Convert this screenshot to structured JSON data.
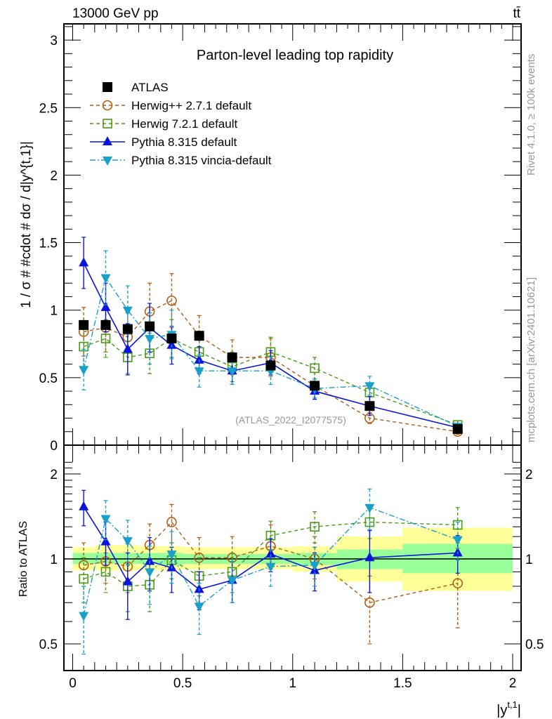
{
  "header": {
    "energy_label": "13000 GeV pp",
    "process_label": "tt̄"
  },
  "side_labels": {
    "rivet": "Rivet 4.1.0, ≥ 100k events",
    "mcplots": "mcplots.cern.ch [arXiv:2401.10621]"
  },
  "chart_data": [
    {
      "type": "line",
      "panel": "main",
      "title": "Parton-level leading top rapidity",
      "annotation": "(ATLAS_2022_I2077575)",
      "xlabel": "|y^{t,1}|",
      "ylabel": "1 / σ # #cdot # dσ / d|y^{t,1}|",
      "xlim": [
        -0.02,
        2.05
      ],
      "ylim": [
        0,
        3.12
      ],
      "x_ticks": [
        "0",
        "0.5",
        "1",
        "1.5",
        "2"
      ],
      "y_ticks": [
        "0",
        "0.5",
        "1",
        "1.5",
        "2",
        "2.5",
        "3"
      ],
      "bin_edges": [
        0,
        0.1,
        0.2,
        0.3,
        0.4,
        0.5,
        0.65,
        0.8,
        1.0,
        1.2,
        1.5,
        2.0
      ],
      "x": [
        0.05,
        0.15,
        0.25,
        0.35,
        0.45,
        0.575,
        0.725,
        0.9,
        1.1,
        1.35,
        1.75
      ],
      "legend_position": "top-left",
      "series": [
        {
          "name": "ATLAS",
          "color": "#000000",
          "marker": "square-filled",
          "line": "none",
          "values": [
            0.89,
            0.89,
            0.86,
            0.88,
            0.79,
            0.81,
            0.65,
            0.59,
            0.44,
            0.29,
            0.12
          ],
          "errors": [
            0.03,
            0.03,
            0.03,
            0.03,
            0.03,
            0.03,
            0.02,
            0.02,
            0.02,
            0.02,
            0.01
          ]
        },
        {
          "name": "Herwig++ 2.7.1 default",
          "color": "#b15c14",
          "marker": "circle-open",
          "line": "dashed",
          "values": [
            0.84,
            0.87,
            0.8,
            0.99,
            1.07,
            0.81,
            0.65,
            0.65,
            0.44,
            0.2,
            0.1
          ],
          "errors": [
            0.18,
            0.18,
            0.18,
            0.21,
            0.2,
            0.15,
            0.13,
            0.14,
            0.1,
            0.04,
            0.02
          ]
        },
        {
          "name": "Herwig 7.2.1 default",
          "color": "#4a9a18",
          "marker": "square-open",
          "line": "dashed",
          "values": [
            0.73,
            0.79,
            0.65,
            0.68,
            0.79,
            0.69,
            0.58,
            0.69,
            0.57,
            0.39,
            0.15
          ],
          "errors": [
            0.17,
            0.14,
            0.12,
            0.15,
            0.14,
            0.12,
            0.11,
            0.11,
            0.08,
            0.07,
            0.03
          ]
        },
        {
          "name": "Pythia 8.315 default",
          "color": "#0a14dc",
          "marker": "triangle-up",
          "line": "solid",
          "values": [
            1.35,
            1.02,
            0.71,
            0.87,
            0.74,
            0.63,
            0.55,
            0.61,
            0.4,
            0.29,
            0.13
          ],
          "errors": [
            0.19,
            0.18,
            0.19,
            0.18,
            0.14,
            0.1,
            0.1,
            0.09,
            0.06,
            0.07,
            0.02
          ]
        },
        {
          "name": "Pythia 8.315 vincia-default",
          "color": "#19a0c8",
          "marker": "triangle-down",
          "line": "dashdot",
          "values": [
            0.56,
            1.24,
            1.0,
            0.79,
            0.82,
            0.55,
            0.55,
            0.55,
            0.42,
            0.44,
            0.14
          ],
          "errors": [
            0.15,
            0.2,
            0.18,
            0.19,
            0.18,
            0.12,
            0.1,
            0.1,
            0.07,
            0.07,
            0.02
          ]
        }
      ]
    },
    {
      "type": "line",
      "panel": "ratio",
      "ylabel": "Ratio to ATLAS",
      "xlabel": "|y^{t,1}|",
      "yscale": "log",
      "ylim": [
        0.42,
        2.3
      ],
      "y_ticks": [
        "0.5",
        "1",
        "2"
      ],
      "x_ticks": [
        "0",
        "0.5",
        "1",
        "1.5",
        "2"
      ],
      "reference": 1,
      "x": [
        0.05,
        0.15,
        0.25,
        0.35,
        0.45,
        0.575,
        0.725,
        0.9,
        1.1,
        1.35,
        1.75
      ],
      "bands": {
        "stat_color": "#99ff99",
        "total_color": "#ffff99",
        "stat_lo": [
          0.96,
          0.96,
          0.96,
          0.96,
          0.95,
          0.96,
          0.96,
          0.96,
          0.95,
          0.92,
          0.89
        ],
        "stat_hi": [
          1.05,
          1.05,
          1.05,
          1.05,
          1.05,
          1.04,
          1.04,
          1.04,
          1.05,
          1.08,
          1.13
        ],
        "total_lo": [
          0.91,
          0.91,
          0.91,
          0.91,
          0.91,
          0.92,
          0.92,
          0.92,
          0.9,
          0.83,
          0.77
        ],
        "total_hi": [
          1.1,
          1.12,
          1.12,
          1.11,
          1.11,
          1.1,
          1.1,
          1.1,
          1.11,
          1.2,
          1.29
        ]
      },
      "series": [
        {
          "name": "Herwig++ 2.7.1 default",
          "color": "#b15c14",
          "values": [
            0.95,
            0.98,
            0.94,
            1.12,
            1.35,
            1.01,
            1.01,
            1.11,
            1.0,
            0.7,
            0.82
          ],
          "lo": [
            0.8,
            0.82,
            0.76,
            0.91,
            1.14,
            0.84,
            0.82,
            0.92,
            0.85,
            0.5,
            0.57
          ],
          "hi": [
            1.14,
            1.17,
            1.13,
            1.33,
            1.56,
            1.19,
            1.2,
            1.32,
            1.2,
            0.87,
            1.09
          ]
        },
        {
          "name": "Herwig 7.2.1 default",
          "color": "#4a9a18",
          "values": [
            0.85,
            0.9,
            0.8,
            0.81,
            0.99,
            0.87,
            0.9,
            1.21,
            1.3,
            1.35,
            1.32
          ],
          "lo": [
            0.7,
            0.76,
            0.65,
            0.65,
            0.85,
            0.74,
            0.76,
            1.06,
            1.14,
            1.18,
            1.14
          ],
          "hi": [
            1.01,
            1.05,
            0.96,
            0.98,
            1.14,
            1.01,
            1.05,
            1.36,
            1.47,
            1.53,
            1.52
          ]
        },
        {
          "name": "Pythia 8.315 default",
          "color": "#0a14dc",
          "values": [
            1.53,
            1.15,
            0.83,
            0.98,
            0.93,
            0.78,
            0.84,
            1.04,
            0.91,
            1.01,
            1.05
          ],
          "lo": [
            1.31,
            0.95,
            0.61,
            0.77,
            0.76,
            0.66,
            0.7,
            0.9,
            0.77,
            0.76,
            0.89
          ],
          "hi": [
            1.75,
            1.35,
            1.05,
            1.19,
            1.1,
            0.9,
            0.98,
            1.18,
            1.05,
            1.26,
            1.21
          ]
        },
        {
          "name": "Pythia 8.315 vincia-default",
          "color": "#19a0c8",
          "values": [
            0.63,
            1.39,
            1.16,
            0.9,
            1.04,
            0.68,
            0.84,
            0.94,
            0.95,
            1.52,
            1.17
          ],
          "lo": [
            0.46,
            1.17,
            0.95,
            0.69,
            0.82,
            0.54,
            0.7,
            0.8,
            0.8,
            1.27,
            0.99
          ],
          "hi": [
            0.8,
            1.61,
            1.37,
            1.11,
            1.25,
            0.82,
            0.98,
            1.08,
            1.1,
            1.77,
            1.35
          ]
        }
      ]
    }
  ]
}
